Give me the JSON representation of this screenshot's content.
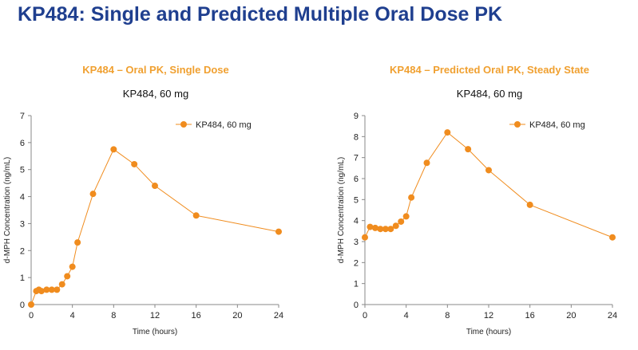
{
  "slide": {
    "title": "KP484:  Single and Predicted  Multiple Oral Dose PK"
  },
  "chart_data": [
    {
      "type": "line",
      "panel_title": "KP484 – Oral PK, Single Dose",
      "title": "KP484, 60 mg",
      "xlabel": "Time (hours)",
      "ylabel": "d-MPH Concentration (ng/mL)",
      "xlim": [
        0,
        24
      ],
      "ylim": [
        0,
        7
      ],
      "xticks": [
        0,
        4,
        8,
        12,
        16,
        20,
        24
      ],
      "yticks": [
        0,
        1,
        2,
        3,
        4,
        5,
        6,
        7
      ],
      "grid": false,
      "legend": "top-right",
      "series": [
        {
          "name": "KP484, 60 mg",
          "color": "#f08c1e",
          "points": [
            [
              0,
              0
            ],
            [
              0.5,
              0.5
            ],
            [
              0.75,
              0.55
            ],
            [
              1,
              0.5
            ],
            [
              1.5,
              0.55
            ],
            [
              2,
              0.55
            ],
            [
              2.5,
              0.55
            ],
            [
              3,
              0.75
            ],
            [
              3.5,
              1.05
            ],
            [
              4,
              1.4
            ],
            [
              4.5,
              2.3
            ],
            [
              6,
              4.1
            ],
            [
              8,
              5.75
            ],
            [
              10,
              5.2
            ],
            [
              12,
              4.4
            ],
            [
              16,
              3.3
            ],
            [
              24,
              2.7
            ]
          ]
        }
      ]
    },
    {
      "type": "line",
      "panel_title": "KP484 – Predicted Oral PK, Steady State",
      "title": "KP484, 60 mg",
      "xlabel": "Time (hours)",
      "ylabel": "d-MPH Concentration (ng/mL)",
      "xlim": [
        0,
        24
      ],
      "ylim": [
        0,
        9
      ],
      "xticks": [
        0,
        4,
        8,
        12,
        16,
        20,
        24
      ],
      "yticks": [
        0,
        1,
        2,
        3,
        4,
        5,
        6,
        7,
        8,
        9
      ],
      "grid": false,
      "legend": "top-right",
      "series": [
        {
          "name": "KP484, 60 mg",
          "color": "#f08c1e",
          "points": [
            [
              0,
              3.2
            ],
            [
              0.5,
              3.7
            ],
            [
              1,
              3.65
            ],
            [
              1.5,
              3.6
            ],
            [
              2,
              3.6
            ],
            [
              2.5,
              3.6
            ],
            [
              3,
              3.75
            ],
            [
              3.5,
              3.95
            ],
            [
              4,
              4.2
            ],
            [
              4.5,
              5.1
            ],
            [
              6,
              6.75
            ],
            [
              8,
              8.2
            ],
            [
              10,
              7.4
            ],
            [
              12,
              6.4
            ],
            [
              16,
              4.75
            ],
            [
              24,
              3.2
            ]
          ]
        }
      ]
    }
  ]
}
